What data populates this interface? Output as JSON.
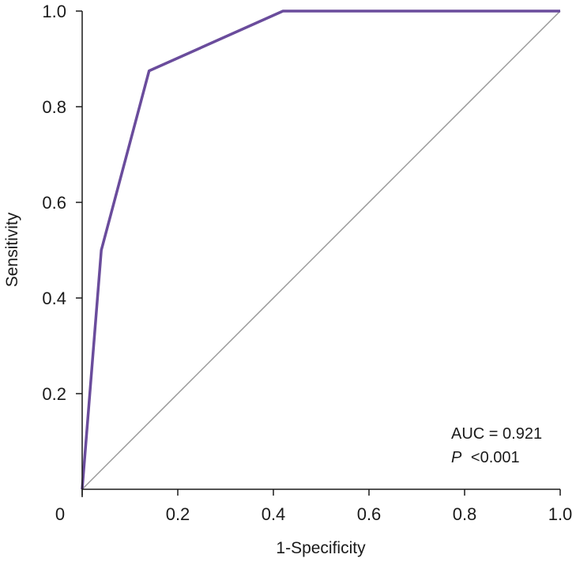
{
  "chart_data": {
    "type": "line",
    "title": "",
    "xlabel": "1-Specificity",
    "ylabel": "Sensitivity",
    "xlim": [
      0,
      1
    ],
    "ylim": [
      0,
      1
    ],
    "grid": false,
    "x_ticks": [
      {
        "value": 0,
        "label": "0"
      },
      {
        "value": 0.2,
        "label": "0.2"
      },
      {
        "value": 0.4,
        "label": "0.4"
      },
      {
        "value": 0.6,
        "label": "0.6"
      },
      {
        "value": 0.8,
        "label": "0.8"
      },
      {
        "value": 1.0,
        "label": "1.0"
      }
    ],
    "y_ticks": [
      {
        "value": 0.2,
        "label": "0.2"
      },
      {
        "value": 0.4,
        "label": "0.4"
      },
      {
        "value": 0.6,
        "label": "0.6"
      },
      {
        "value": 0.8,
        "label": "0.8"
      },
      {
        "value": 1.0,
        "label": "1.0"
      }
    ],
    "series": [
      {
        "name": "ROC curve",
        "color": "#6a4c9c",
        "x": [
          0,
          0.04,
          0.14,
          0.42,
          1.0
        ],
        "y": [
          0,
          0.5,
          0.875,
          1.0,
          1.0
        ]
      },
      {
        "name": "Reference line",
        "color": "#999999",
        "x": [
          0,
          1.0
        ],
        "y": [
          0,
          1.0
        ]
      }
    ],
    "annotations": {
      "auc": "AUC = 0.921",
      "p_symbol": "P",
      "p_value": "<0.001"
    }
  }
}
